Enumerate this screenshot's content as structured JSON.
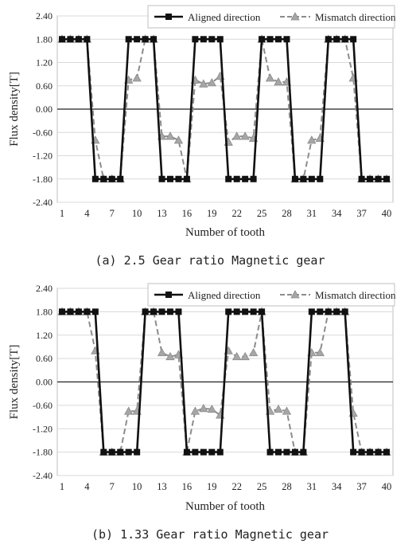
{
  "chart_data": [
    {
      "type": "line",
      "x": [
        1,
        2,
        3,
        4,
        5,
        6,
        7,
        8,
        9,
        10,
        11,
        12,
        13,
        14,
        15,
        16,
        17,
        18,
        19,
        20,
        21,
        22,
        23,
        24,
        25,
        26,
        27,
        28,
        29,
        30,
        31,
        32,
        33,
        34,
        35,
        36,
        37,
        38,
        39,
        40
      ],
      "x_ticks": [
        1,
        4,
        7,
        10,
        13,
        16,
        19,
        22,
        25,
        28,
        31,
        34,
        37,
        40
      ],
      "xlabel": "Number of tooth",
      "ylabel": "Flux density[T]",
      "ylim": [
        -2.4,
        2.4
      ],
      "y_ticks": [
        "2.40",
        "1.80",
        "1.20",
        "0.60",
        "0.00",
        "-0.60",
        "-1.20",
        "-1.80",
        "-2.40"
      ],
      "grid": "horizontal",
      "legend_position": "top-right",
      "series": [
        {
          "name": "Aligned direction",
          "color": "#111111",
          "style": "solid",
          "marker": "square",
          "values": [
            1.8,
            1.8,
            1.8,
            1.8,
            -1.8,
            -1.8,
            -1.8,
            -1.8,
            1.8,
            1.8,
            1.8,
            1.8,
            -1.8,
            -1.8,
            -1.8,
            -1.8,
            1.8,
            1.8,
            1.8,
            1.8,
            -1.8,
            -1.8,
            -1.8,
            -1.8,
            1.8,
            1.8,
            1.8,
            1.8,
            -1.8,
            -1.8,
            -1.8,
            -1.8,
            1.8,
            1.8,
            1.8,
            1.8,
            -1.8,
            -1.8,
            -1.8,
            -1.8
          ]
        },
        {
          "name": "Mismatch direction",
          "color": "#8c8c8c",
          "style": "dashed",
          "marker": "triangle",
          "values": [
            1.8,
            1.8,
            1.8,
            1.8,
            -0.8,
            -1.8,
            -1.8,
            -1.8,
            0.75,
            0.8,
            1.8,
            1.8,
            -0.7,
            -0.7,
            -0.8,
            -1.8,
            0.75,
            0.65,
            0.68,
            0.85,
            -0.85,
            -0.7,
            -0.7,
            -0.75,
            1.8,
            0.8,
            0.7,
            0.7,
            -1.8,
            -1.8,
            -0.8,
            -0.75,
            1.8,
            1.8,
            1.8,
            0.8,
            -1.8,
            -1.8,
            -1.8,
            -1.8
          ]
        }
      ]
    },
    {
      "type": "line",
      "x": [
        1,
        2,
        3,
        4,
        5,
        6,
        7,
        8,
        9,
        10,
        11,
        12,
        13,
        14,
        15,
        16,
        17,
        18,
        19,
        20,
        21,
        22,
        23,
        24,
        25,
        26,
        27,
        28,
        29,
        30,
        31,
        32,
        33,
        34,
        35,
        36,
        37,
        38,
        39,
        40
      ],
      "x_ticks": [
        1,
        4,
        7,
        10,
        13,
        16,
        19,
        22,
        25,
        28,
        31,
        34,
        37,
        40
      ],
      "xlabel": "Number of tooth",
      "ylabel": "Flux density[T]",
      "ylim": [
        -2.4,
        2.4
      ],
      "y_ticks": [
        "2.40",
        "1.80",
        "1.20",
        "0.60",
        "0.00",
        "-0.60",
        "-1.20",
        "-1.80",
        "-2.40"
      ],
      "grid": "horizontal",
      "legend_position": "top-right",
      "series": [
        {
          "name": "Aligned direction",
          "color": "#111111",
          "style": "solid",
          "marker": "square",
          "values": [
            1.8,
            1.8,
            1.8,
            1.8,
            1.8,
            -1.8,
            -1.8,
            -1.8,
            -1.8,
            -1.8,
            1.8,
            1.8,
            1.8,
            1.8,
            1.8,
            -1.8,
            -1.8,
            -1.8,
            -1.8,
            -1.8,
            1.8,
            1.8,
            1.8,
            1.8,
            1.8,
            -1.8,
            -1.8,
            -1.8,
            -1.8,
            -1.8,
            1.8,
            1.8,
            1.8,
            1.8,
            1.8,
            -1.8,
            -1.8,
            -1.8,
            -1.8,
            -1.8
          ]
        },
        {
          "name": "Mismatch direction",
          "color": "#8c8c8c",
          "style": "dashed",
          "marker": "triangle",
          "values": [
            1.8,
            1.8,
            1.8,
            1.8,
            0.8,
            -1.8,
            -1.8,
            -1.8,
            -0.75,
            -0.75,
            1.8,
            1.8,
            0.75,
            0.65,
            0.7,
            -1.8,
            -0.75,
            -0.68,
            -0.7,
            -0.85,
            0.8,
            0.65,
            0.65,
            0.75,
            1.8,
            -0.75,
            -0.7,
            -0.75,
            -1.8,
            -1.8,
            0.75,
            0.75,
            1.8,
            1.8,
            1.8,
            -0.8,
            -1.8,
            -1.8,
            -1.8,
            -1.8
          ]
        }
      ]
    }
  ],
  "captions": {
    "a": "(a) 2.5 Gear ratio Magnetic gear",
    "b": "(b) 1.33 Gear ratio Magnetic gear"
  }
}
